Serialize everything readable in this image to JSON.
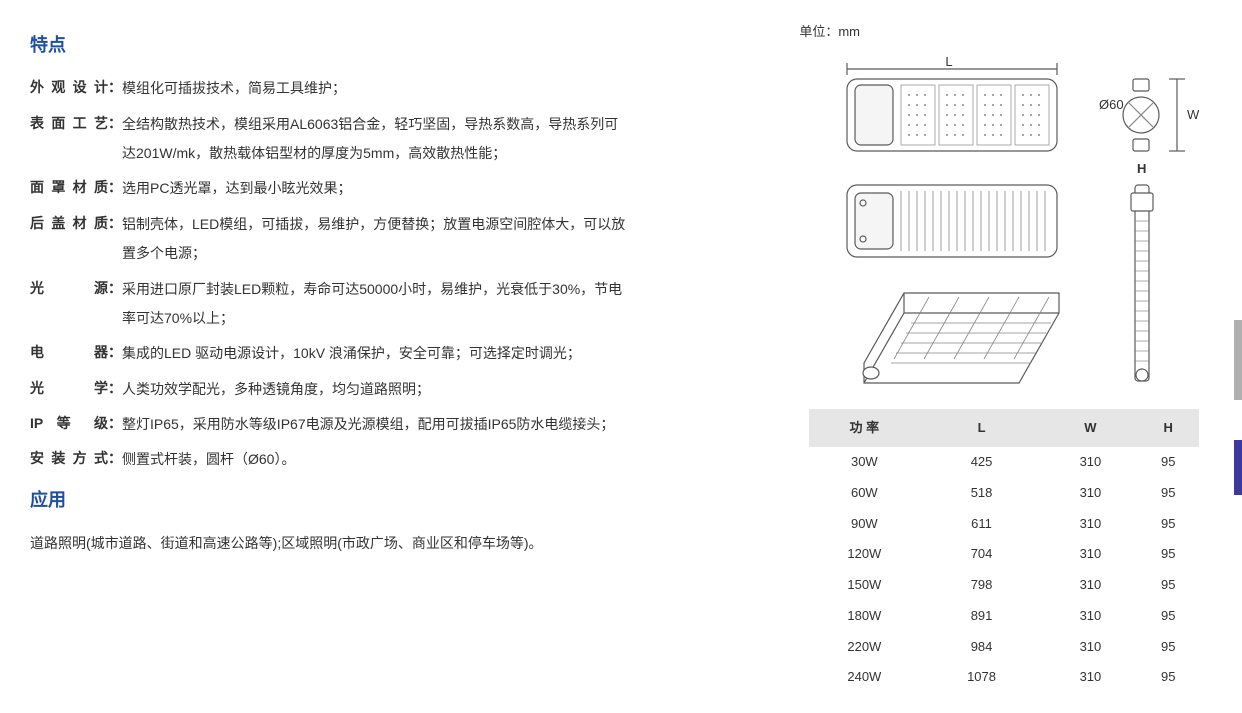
{
  "headings": {
    "features": "特点",
    "applications": "应用"
  },
  "features": [
    {
      "label": "外观设计",
      "value": "模组化可插拔技术，简易工具维护；"
    },
    {
      "label": "表面工艺",
      "value": "全结构散热技术，模组采用AL6063铝合金，轻巧坚固，导热系数高，导热系列可达201W/mk，散热载体铝型材的厚度为5mm，高效散热性能；"
    },
    {
      "label": "面罩材质",
      "value": "选用PC透光罩，达到最小眩光效果；"
    },
    {
      "label": "后盖材质",
      "value": "铝制壳体，LED模组，可插拔，易维护，方便替换；放置电源空间腔体大，可以放置多个电源；"
    },
    {
      "label": "光　　源",
      "value": "采用进口原厂封装LED颗粒，寿命可达50000小时，易维护，光衰低于30%，节电率可达70%以上；"
    },
    {
      "label": "电　　器",
      "value": "集成的LED 驱动电源设计，10kV 浪涌保护，安全可靠；可选择定时调光；"
    },
    {
      "label": "光　　学",
      "value": "人类功效学配光，多种透镜角度，均匀道路照明；"
    },
    {
      "label": "IP 等  级",
      "value": "整灯IP65，采用防水等级IP67电源及光源模组，配用可拔插IP65防水电缆接头；"
    },
    {
      "label": "安装方式",
      "value": "侧置式杆装，圆杆（Ø60）。"
    }
  ],
  "applications_text": "道路照明(城市道路、街道和高速公路等);区域照明(市政广场、商业区和停车场等)。",
  "unit_label": "单位：mm",
  "diagram": {
    "labels": {
      "L": "L",
      "W": "W",
      "H": "H",
      "diameter": "Ø60"
    },
    "stroke": "#5b5b5b",
    "stroke_light": "#888888",
    "fill": "#ffffff"
  },
  "spec_table": {
    "columns": [
      "功 率",
      "L",
      "W",
      "H"
    ],
    "rows": [
      [
        "30W",
        "425",
        "310",
        "95"
      ],
      [
        "60W",
        "518",
        "310",
        "95"
      ],
      [
        "90W",
        "611",
        "310",
        "95"
      ],
      [
        "120W",
        "704",
        "310",
        "95"
      ],
      [
        "150W",
        "798",
        "310",
        "95"
      ],
      [
        "180W",
        "891",
        "310",
        "95"
      ],
      [
        "220W",
        "984",
        "310",
        "95"
      ],
      [
        "240W",
        "1078",
        "310",
        "95"
      ]
    ],
    "header_bg": "#e6e6e6"
  }
}
